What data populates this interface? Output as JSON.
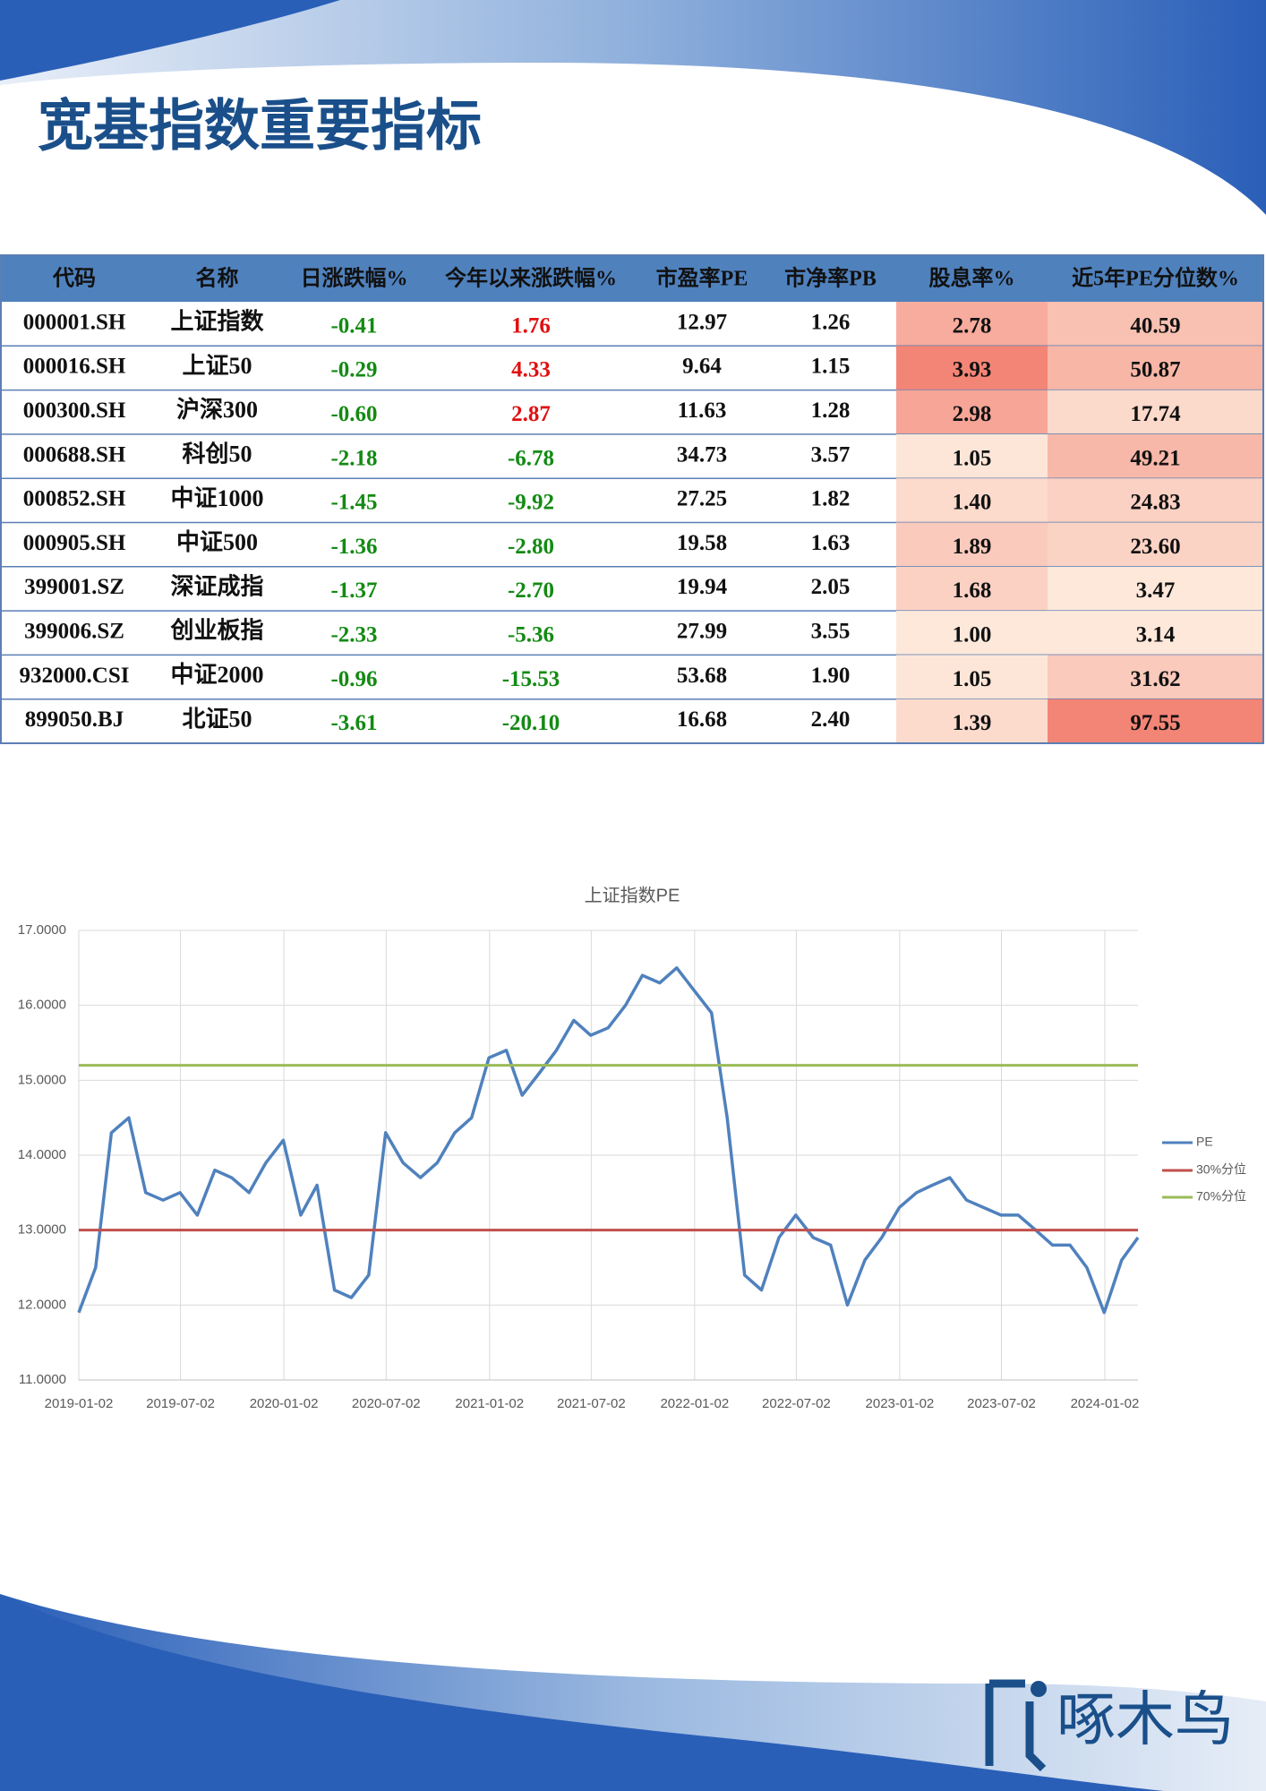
{
  "header": {
    "title": "宽基指数重要指标"
  },
  "table": {
    "headers": [
      "代码",
      "名称",
      "日涨跌幅%",
      "今年以来涨跌幅%",
      "市盈率PE",
      "市净率PB",
      "股息率%",
      "近5年PE分位数%"
    ],
    "rows": [
      [
        "000001.SH",
        "上证指数",
        "-0.41",
        "1.76",
        "12.97",
        "1.26",
        "2.78",
        "40.59"
      ],
      [
        "000016.SH",
        "上证50",
        "-0.29",
        "4.33",
        "9.64",
        "1.15",
        "3.93",
        "50.87"
      ],
      [
        "000300.SH",
        "沪深300",
        "-0.60",
        "2.87",
        "11.63",
        "1.28",
        "2.98",
        "17.74"
      ],
      [
        "000688.SH",
        "科创50",
        "-2.18",
        "-6.78",
        "34.73",
        "3.57",
        "1.05",
        "49.21"
      ],
      [
        "000852.SH",
        "中证1000",
        "-1.45",
        "-9.92",
        "27.25",
        "1.82",
        "1.40",
        "24.83"
      ],
      [
        "000905.SH",
        "中证500",
        "-1.36",
        "-2.80",
        "19.58",
        "1.63",
        "1.89",
        "23.60"
      ],
      [
        "399001.SZ",
        "深证成指",
        "-1.37",
        "-2.70",
        "19.94",
        "2.05",
        "1.68",
        "3.47"
      ],
      [
        "399006.SZ",
        "创业板指",
        "-2.33",
        "-5.36",
        "27.99",
        "3.55",
        "1.00",
        "3.14"
      ],
      [
        "932000.CSI",
        "中证2000",
        "-0.96",
        "-15.53",
        "53.68",
        "1.90",
        "1.05",
        "31.62"
      ],
      [
        "899050.BJ",
        "北证50",
        "-3.61",
        "-20.10",
        "16.68",
        "2.40",
        "1.39",
        "97.55"
      ]
    ]
  },
  "chart_data": {
    "type": "line",
    "title": "上证指数PE",
    "x": [
      "2019-01-02",
      "2019-02-01",
      "2019-03-01",
      "2019-04-01",
      "2019-05-01",
      "2019-06-01",
      "2019-07-01",
      "2019-08-01",
      "2019-09-01",
      "2019-10-01",
      "2019-11-01",
      "2019-12-01",
      "2020-01-01",
      "2020-02-01",
      "2020-03-01",
      "2020-04-01",
      "2020-05-01",
      "2020-06-01",
      "2020-07-01",
      "2020-08-01",
      "2020-09-01",
      "2020-10-01",
      "2020-11-01",
      "2020-12-01",
      "2021-01-01",
      "2021-02-01",
      "2021-03-01",
      "2021-04-01",
      "2021-05-01",
      "2021-06-01",
      "2021-07-01",
      "2021-08-01",
      "2021-09-01",
      "2021-10-01",
      "2021-11-01",
      "2021-12-01",
      "2022-01-01",
      "2022-02-01",
      "2022-03-01",
      "2022-04-01",
      "2022-05-01",
      "2022-06-01",
      "2022-07-01",
      "2022-08-01",
      "2022-09-01",
      "2022-10-01",
      "2022-11-01",
      "2022-12-01",
      "2023-01-01",
      "2023-02-01",
      "2023-03-01",
      "2023-04-01",
      "2023-05-01",
      "2023-06-01",
      "2023-07-01",
      "2023-08-01",
      "2023-09-01",
      "2023-10-01",
      "2023-11-01",
      "2023-12-01",
      "2024-01-01",
      "2024-02-01",
      "2024-03-01"
    ],
    "series": [
      {
        "name": "PE",
        "color": "#4f81bd",
        "values": [
          11.9,
          12.5,
          14.3,
          14.5,
          13.5,
          13.4,
          13.5,
          13.2,
          13.8,
          13.7,
          13.5,
          13.9,
          14.2,
          13.2,
          13.6,
          12.2,
          12.1,
          12.4,
          14.3,
          13.9,
          13.7,
          13.9,
          14.3,
          14.5,
          15.3,
          15.4,
          14.8,
          15.1,
          15.4,
          15.8,
          15.6,
          15.7,
          16.0,
          16.4,
          16.3,
          16.5,
          16.2,
          15.9,
          14.5,
          12.4,
          12.2,
          12.9,
          13.2,
          12.9,
          12.8,
          12.0,
          12.6,
          12.9,
          13.3,
          13.5,
          13.6,
          13.7,
          13.4,
          13.3,
          13.2,
          13.2,
          13.0,
          12.8,
          12.8,
          12.5,
          11.9,
          12.6,
          12.9
        ]
      }
    ],
    "reference_lines": [
      {
        "name": "30%分位",
        "color": "#c0504d",
        "value": 13.0
      },
      {
        "name": "70%分位",
        "color": "#9bbb59",
        "value": 15.2
      }
    ],
    "xlim": [
      "2019-01-02",
      "2024-03-01"
    ],
    "xticks": [
      "2019-01-02",
      "2019-07-02",
      "2020-01-02",
      "2020-07-02",
      "2021-01-02",
      "2021-07-02",
      "2022-01-02",
      "2022-07-02",
      "2023-01-02",
      "2023-07-02",
      "2024-01-02"
    ],
    "ylim": [
      11,
      17
    ],
    "yticks": [
      {
        "value": 11,
        "label": "11.0000"
      },
      {
        "value": 12,
        "label": "12.0000"
      },
      {
        "value": 13,
        "label": "13.0000"
      },
      {
        "value": 14,
        "label": "14.0000"
      },
      {
        "value": 15,
        "label": "15.0000"
      },
      {
        "value": 16,
        "label": "16.0000"
      },
      {
        "value": 17,
        "label": "17.0000"
      }
    ],
    "grid": true
  },
  "footer": {
    "logo": "啄木鸟"
  }
}
